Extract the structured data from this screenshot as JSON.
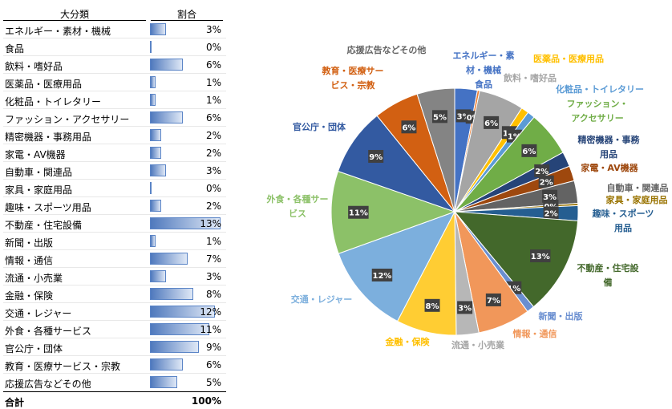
{
  "table": {
    "header_category": "大分類",
    "header_ratio": "割合",
    "total_label": "合計",
    "total_value": "100%"
  },
  "chart_data": {
    "type": "pie",
    "categories": [
      "エネルギー・素材・機械",
      "食品",
      "飲料・嗜好品",
      "医薬品・医療用品",
      "化粧品・トイレタリー",
      "ファッション・アクセサリー",
      "精密機器・事務用品",
      "家電・AV機器",
      "自動車・関連品",
      "家具・家庭用品",
      "趣味・スポーツ用品",
      "不動産・住宅設備",
      "新聞・出版",
      "情報・通信",
      "流通・小売業",
      "金融・保険",
      "交通・レジャー",
      "外食・各種サービス",
      "官公庁・団体",
      "教育・医療サービス・宗教",
      "応援広告などその他"
    ],
    "values": [
      3,
      0.3,
      6,
      1,
      1,
      6,
      2,
      2,
      3,
      0.3,
      2,
      13,
      1,
      7,
      3,
      8,
      12,
      11,
      9,
      6,
      5
    ],
    "value_labels": [
      "3%",
      "0%",
      "6%",
      "1%",
      "1%",
      "6%",
      "2%",
      "2%",
      "3%",
      "0%",
      "2%",
      "13%",
      "1%",
      "7%",
      "3%",
      "8%",
      "12%",
      "11%",
      "9%",
      "6%",
      "5%"
    ],
    "slice_labels": [
      [
        "エネルギー・素",
        "材・機械",
        "食品"
      ],
      [],
      [
        "飲料・嗜好品"
      ],
      [
        "医薬品・医療用品"
      ],
      [
        "化粧品・トイレタリー"
      ],
      [
        "ファッション・",
        "アクセサリー"
      ],
      [
        "精密機器・事務",
        "用品"
      ],
      [
        "家電・AV機器"
      ],
      [
        "自動車・関連品"
      ],
      [
        "家具・家庭用品"
      ],
      [
        "趣味・スポーツ",
        "用品"
      ],
      [
        "不動産・住宅設",
        "備"
      ],
      [
        "新聞・出版"
      ],
      [
        "情報・通信"
      ],
      [
        "流通・小売業"
      ],
      [
        "金融・保険"
      ],
      [
        "交通・レジャー"
      ],
      [
        "外食・各種サー",
        "ビス"
      ],
      [
        "官公庁・団体"
      ],
      [
        "教育・医療サー",
        "ビス・宗教"
      ],
      [
        "応援広告などその他"
      ]
    ],
    "colors": [
      "#4472c4",
      "#ed7d31",
      "#a5a5a5",
      "#ffc000",
      "#5b9bd5",
      "#70ad47",
      "#264478",
      "#9e480e",
      "#636363",
      "#997300",
      "#255e91",
      "#43682b",
      "#698ed0",
      "#f1975a",
      "#b7b7b7",
      "#ffcd33",
      "#7cafdd",
      "#8cc168",
      "#335aa1",
      "#d26012",
      "#848484"
    ]
  }
}
